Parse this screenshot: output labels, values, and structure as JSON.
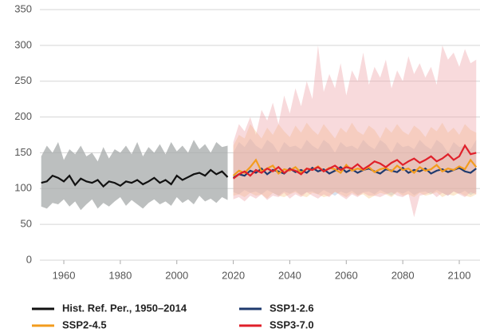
{
  "chart_data": {
    "type": "line",
    "xlim": [
      1952,
      2107
    ],
    "xticks": [
      1960,
      1980,
      2000,
      2020,
      2040,
      2060,
      2080,
      2100
    ],
    "ylim": [
      0,
      350
    ],
    "yticks": [
      0,
      50,
      100,
      150,
      200,
      250,
      300,
      350
    ],
    "grid": true,
    "legend": "bottom",
    "series": [
      {
        "name": "Hist. Ref. Per., 1950–2014",
        "color": "#111111",
        "band_color": "#a6aaa9",
        "x": [
          1952,
          1954,
          1956,
          1958,
          1960,
          1962,
          1964,
          1966,
          1968,
          1970,
          1972,
          1974,
          1976,
          1978,
          1980,
          1982,
          1984,
          1986,
          1988,
          1990,
          1992,
          1994,
          1996,
          1998,
          2000,
          2002,
          2004,
          2006,
          2008,
          2010,
          2012,
          2014,
          2016,
          2018
        ],
        "values": [
          108,
          110,
          118,
          115,
          110,
          118,
          105,
          114,
          110,
          108,
          112,
          103,
          110,
          108,
          104,
          110,
          108,
          112,
          106,
          110,
          115,
          108,
          112,
          106,
          118,
          112,
          116,
          120,
          122,
          118,
          126,
          120,
          124,
          116
        ],
        "upper": [
          145,
          160,
          150,
          165,
          140,
          155,
          148,
          160,
          145,
          150,
          138,
          158,
          142,
          155,
          150,
          160,
          148,
          165,
          145,
          158,
          150,
          162,
          148,
          165,
          152,
          160,
          150,
          168,
          155,
          162,
          150,
          165,
          158,
          160
        ],
        "lower": [
          75,
          72,
          80,
          78,
          85,
          75,
          82,
          70,
          78,
          85,
          72,
          80,
          75,
          82,
          88,
          76,
          84,
          78,
          72,
          80,
          85,
          78,
          82,
          76,
          88,
          80,
          85,
          78,
          90,
          82,
          86,
          80,
          88,
          84
        ]
      },
      {
        "name": "SSP1-2.6",
        "color": "#1f3a6e",
        "band_color": "#9fb6d6",
        "x": [
          2020,
          2022,
          2024,
          2026,
          2028,
          2030,
          2032,
          2034,
          2036,
          2038,
          2040,
          2042,
          2044,
          2046,
          2048,
          2050,
          2052,
          2054,
          2056,
          2058,
          2060,
          2062,
          2064,
          2066,
          2068,
          2070,
          2072,
          2074,
          2076,
          2078,
          2080,
          2082,
          2084,
          2086,
          2088,
          2090,
          2092,
          2094,
          2096,
          2098,
          2100,
          2102,
          2104,
          2106
        ],
        "values": [
          115,
          120,
          118,
          125,
          122,
          128,
          120,
          126,
          124,
          121,
          128,
          123,
          126,
          122,
          129,
          124,
          127,
          121,
          125,
          130,
          123,
          127,
          122,
          126,
          128,
          124,
          121,
          127,
          125,
          123,
          129,
          122,
          126,
          124,
          128,
          121,
          125,
          127,
          123,
          126,
          129,
          124,
          122,
          128
        ],
        "upper": [
          150,
          165,
          158,
          170,
          160,
          155,
          168,
          162,
          150,
          165,
          158,
          160,
          155,
          168,
          160,
          155,
          168,
          162,
          150,
          165,
          158,
          160,
          155,
          168,
          160,
          155,
          168,
          162,
          150,
          165,
          158,
          160,
          155,
          168,
          160,
          155,
          168,
          162,
          150,
          165,
          158,
          160,
          155,
          168
        ],
        "lower": [
          95,
          92,
          98,
          94,
          96,
          92,
          98,
          94,
          90,
          96,
          93,
          97,
          91,
          95,
          96,
          92,
          98,
          94,
          90,
          96,
          93,
          97,
          91,
          95,
          96,
          92,
          98,
          94,
          90,
          96,
          93,
          97,
          91,
          95,
          96,
          92,
          98,
          94,
          90,
          96,
          93,
          97,
          91,
          95
        ]
      },
      {
        "name": "SSP2-4.5",
        "color": "#f39c1e",
        "band_color": "#f7c98a",
        "x": [
          2020,
          2022,
          2024,
          2026,
          2028,
          2030,
          2032,
          2034,
          2036,
          2038,
          2040,
          2042,
          2044,
          2046,
          2048,
          2050,
          2052,
          2054,
          2056,
          2058,
          2060,
          2062,
          2064,
          2066,
          2068,
          2070,
          2072,
          2074,
          2076,
          2078,
          2080,
          2082,
          2084,
          2086,
          2088,
          2090,
          2092,
          2094,
          2096,
          2098,
          2100,
          2102,
          2104,
          2106
        ],
        "values": [
          118,
          125,
          122,
          130,
          140,
          124,
          128,
          132,
          121,
          127,
          125,
          130,
          122,
          128,
          126,
          131,
          124,
          129,
          127,
          122,
          133,
          125,
          128,
          126,
          130,
          123,
          127,
          129,
          124,
          132,
          126,
          128,
          122,
          130,
          125,
          127,
          133,
          124,
          128,
          126,
          131,
          127,
          140,
          130
        ],
        "upper": [
          160,
          175,
          170,
          190,
          180,
          170,
          185,
          175,
          190,
          180,
          172,
          188,
          178,
          192,
          182,
          175,
          190,
          180,
          170,
          185,
          178,
          192,
          180,
          175,
          188,
          182,
          170,
          186,
          178,
          190,
          180,
          175,
          188,
          182,
          172,
          186,
          180,
          192,
          178,
          185,
          175,
          190,
          182,
          178
        ],
        "lower": [
          90,
          92,
          88,
          94,
          90,
          92,
          86,
          94,
          90,
          88,
          92,
          95,
          90,
          88,
          94,
          92,
          88,
          90,
          95,
          92,
          88,
          94,
          90,
          92,
          86,
          90,
          94,
          92,
          88,
          95,
          90,
          92,
          88,
          94,
          90,
          92,
          95,
          88,
          92,
          90,
          94,
          90,
          88,
          92
        ]
      },
      {
        "name": "SSP3-7.0",
        "color": "#e0202a",
        "band_color": "#eea3a8",
        "x": [
          2020,
          2022,
          2024,
          2026,
          2028,
          2030,
          2032,
          2034,
          2036,
          2038,
          2040,
          2042,
          2044,
          2046,
          2048,
          2050,
          2052,
          2054,
          2056,
          2058,
          2060,
          2062,
          2064,
          2066,
          2068,
          2070,
          2072,
          2074,
          2076,
          2078,
          2080,
          2082,
          2084,
          2086,
          2088,
          2090,
          2092,
          2094,
          2096,
          2098,
          2100,
          2102,
          2104,
          2106
        ],
        "values": [
          114,
          120,
          124,
          118,
          126,
          122,
          128,
          124,
          130,
          122,
          127,
          125,
          120,
          128,
          126,
          130,
          124,
          128,
          132,
          126,
          130,
          128,
          134,
          127,
          132,
          138,
          135,
          130,
          136,
          140,
          133,
          138,
          142,
          136,
          140,
          145,
          138,
          142,
          148,
          140,
          145,
          160,
          148,
          150
        ],
        "upper": [
          165,
          190,
          180,
          200,
          175,
          210,
          195,
          220,
          190,
          230,
          205,
          240,
          215,
          250,
          225,
          300,
          235,
          260,
          240,
          275,
          230,
          265,
          250,
          290,
          245,
          270,
          255,
          280,
          240,
          265,
          250,
          285,
          260,
          275,
          255,
          270,
          245,
          300,
          280,
          290,
          270,
          295,
          275,
          280
        ],
        "lower": [
          85,
          88,
          82,
          90,
          86,
          92,
          84,
          90,
          88,
          94,
          86,
          92,
          88,
          95,
          90,
          86,
          92,
          88,
          96,
          90,
          85,
          92,
          88,
          94,
          90,
          90,
          88,
          92,
          95,
          90,
          88,
          93,
          60,
          90,
          92,
          95,
          88,
          94,
          90,
          96,
          92,
          88,
          95,
          92
        ]
      }
    ]
  }
}
